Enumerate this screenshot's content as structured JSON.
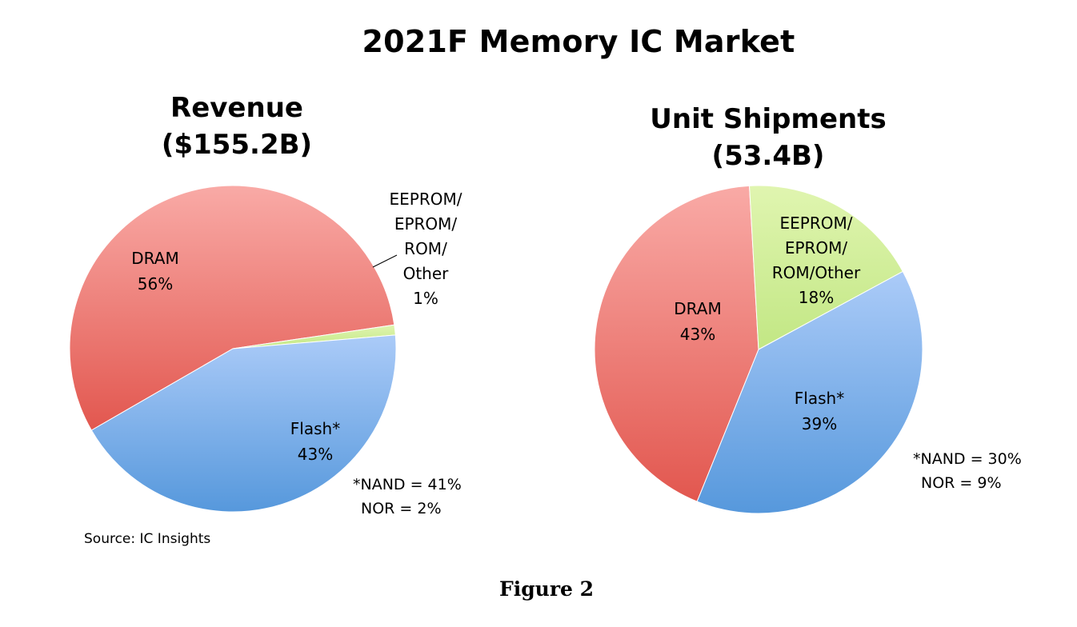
{
  "title": "2021F Memory IC Market",
  "caption": "Figure 2",
  "source": "Source:  IC Insights",
  "colors": {
    "dram": "#ee6f6a",
    "flash": "#6fa4e6",
    "other": "#cdee8f"
  },
  "chart_data": [
    {
      "type": "pie",
      "title_line1": "Revenue",
      "title_line2": "($155.2B)",
      "slices": [
        {
          "name": "DRAM",
          "value": 56,
          "label_lines": [
            "DRAM",
            "56%"
          ]
        },
        {
          "name": "EEPROM/EPROM/ROM/Other",
          "value": 1,
          "label_lines": [
            "EEPROM/",
            "EPROM/",
            "ROM/",
            "Other",
            "1%"
          ]
        },
        {
          "name": "Flash*",
          "value": 43,
          "label_lines": [
            "Flash*",
            "43%"
          ]
        }
      ],
      "note_lines": [
        "*NAND = 41%",
        "NOR = 2%"
      ]
    },
    {
      "type": "pie",
      "title_line1": "Unit Shipments",
      "title_line2": "(53.4B)",
      "slices": [
        {
          "name": "DRAM",
          "value": 43,
          "label_lines": [
            "DRAM",
            "43%"
          ]
        },
        {
          "name": "EEPROM/EPROM/ROM/Other",
          "value": 18,
          "label_lines": [
            "EEPROM/",
            "EPROM/",
            "ROM/Other",
            "18%"
          ]
        },
        {
          "name": "Flash*",
          "value": 39,
          "label_lines": [
            "Flash*",
            "39%"
          ]
        }
      ],
      "note_lines": [
        "*NAND = 30%",
        "NOR = 9%"
      ]
    }
  ]
}
